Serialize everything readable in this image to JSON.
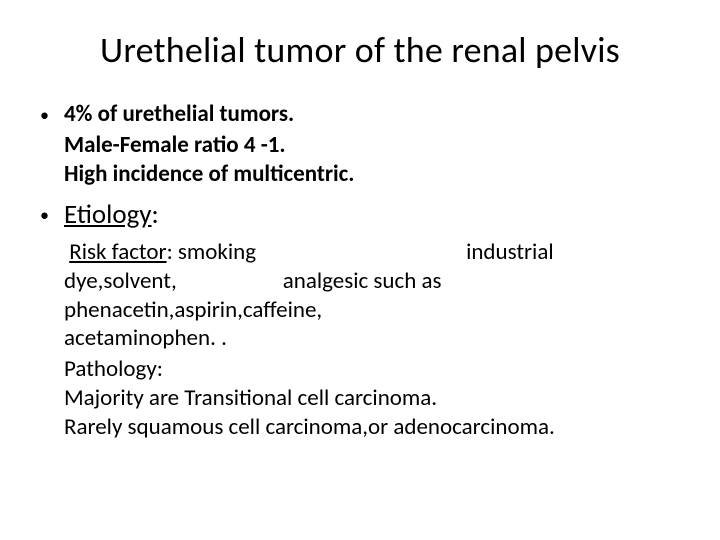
{
  "title": "Urethelial tumor of the renal pelvis",
  "bullets": {
    "b1": "4% of urethelial tumors.",
    "b1_l2": "Male-Female ratio 4 -1.",
    "b1_l3": "High incidence of multicentric."
  },
  "etiology": {
    "label": "Etiology",
    "colon": ":"
  },
  "risk": {
    "label": "Risk factor",
    "smoking": ": smoking",
    "industrial": "industrial",
    "dye": "dye,solvent,",
    "analgesic": "analgesic such as",
    "phen": "phenacetin,aspirin,caffeine,",
    "acet": " acetaminophen. ."
  },
  "pathology": {
    "label": "Pathology:",
    "l1": " Majority are Transitional cell carcinoma.",
    "l2": " Rarely squamous cell carcinoma,or adenocarcinoma."
  },
  "glyphs": {
    "bullet": "•"
  },
  "colors": {
    "text": "#000000",
    "background": "#ffffff"
  },
  "typography": {
    "title_fontsize": 36,
    "body_fontsize": 23,
    "etiology_fontsize": 27,
    "font_family": "Calibri"
  }
}
